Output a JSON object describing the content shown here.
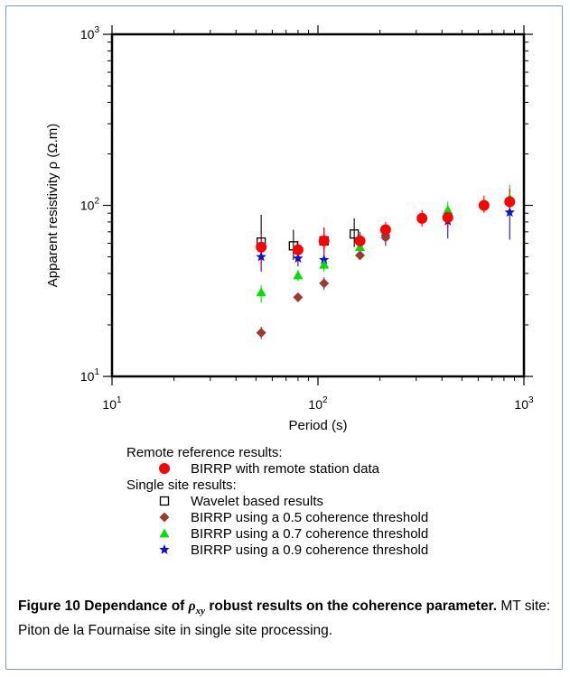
{
  "chart_data": {
    "type": "scatter",
    "xlabel": "Period (s)",
    "ylabel": "Apparent resistivity ρ (Ω.m)",
    "xscale": "log",
    "yscale": "log",
    "xlim": [
      10,
      1000
    ],
    "ylim": [
      10,
      1000
    ],
    "x_ticks": [
      {
        "base": "10",
        "exp": "1",
        "value": 10
      },
      {
        "base": "10",
        "exp": "2",
        "value": 100
      },
      {
        "base": "10",
        "exp": "3",
        "value": 1000
      }
    ],
    "y_ticks": [
      {
        "base": "10",
        "exp": "1",
        "value": 10
      },
      {
        "base": "10",
        "exp": "2",
        "value": 100
      },
      {
        "base": "10",
        "exp": "3",
        "value": 1000
      }
    ],
    "grid": false,
    "legend_position": "below",
    "series": [
      {
        "name": "BIRRP with remote station data",
        "group": "Remote reference results:",
        "marker": "circle",
        "color": "#ff0000",
        "points": [
          {
            "x": 53,
            "y": 57,
            "lo": 44,
            "hi": 68
          },
          {
            "x": 80,
            "y": 55,
            "lo": 47,
            "hi": 62
          },
          {
            "x": 107,
            "y": 62,
            "lo": 50,
            "hi": 74
          },
          {
            "x": 160,
            "y": 62,
            "lo": 55,
            "hi": 70
          },
          {
            "x": 213,
            "y": 72,
            "lo": 64,
            "hi": 80
          },
          {
            "x": 320,
            "y": 84,
            "lo": 75,
            "hi": 94
          },
          {
            "x": 427,
            "y": 85,
            "lo": 74,
            "hi": 95
          },
          {
            "x": 640,
            "y": 100,
            "lo": 90,
            "hi": 114
          },
          {
            "x": 853,
            "y": 105,
            "lo": 92,
            "hi": 125
          }
        ]
      },
      {
        "name": "Wavelet based results",
        "group": "Single site results:",
        "marker": "square",
        "color": "#000000",
        "points": [
          {
            "x": 53,
            "y": 61,
            "lo": 47,
            "hi": 88
          },
          {
            "x": 76,
            "y": 58,
            "lo": 48,
            "hi": 72
          },
          {
            "x": 107,
            "y": 62,
            "lo": 53,
            "hi": 74
          },
          {
            "x": 150,
            "y": 68,
            "lo": 57,
            "hi": 84
          }
        ]
      },
      {
        "name": "BIRRP using a 0.5 coherence threshold",
        "group": "Single site results:",
        "marker": "diamond",
        "color": "#9b3b30",
        "points": [
          {
            "x": 53,
            "y": 18,
            "lo": 16.5,
            "hi": 19.5
          },
          {
            "x": 80,
            "y": 29,
            "lo": 28,
            "hi": 30
          },
          {
            "x": 107,
            "y": 35,
            "lo": 32,
            "hi": 38
          },
          {
            "x": 160,
            "y": 51,
            "lo": 49,
            "hi": 53
          },
          {
            "x": 213,
            "y": 65,
            "lo": 61,
            "hi": 69
          }
        ]
      },
      {
        "name": "BIRRP using a 0.7 coherence threshold",
        "group": "Single site results:",
        "marker": "triangle",
        "color": "#00e000",
        "points": [
          {
            "x": 53,
            "y": 31,
            "lo": 27,
            "hi": 34
          },
          {
            "x": 80,
            "y": 39,
            "lo": 36,
            "hi": 42
          },
          {
            "x": 107,
            "y": 45,
            "lo": 41,
            "hi": 50
          },
          {
            "x": 160,
            "y": 57,
            "lo": 52,
            "hi": 62
          },
          {
            "x": 427,
            "y": 94,
            "lo": 84,
            "hi": 105
          },
          {
            "x": 853,
            "y": 110,
            "lo": 95,
            "hi": 132
          }
        ]
      },
      {
        "name": "BIRRP using a 0.9 coherence threshold",
        "group": "Single site results:",
        "marker": "star",
        "color": "#1010d0",
        "points": [
          {
            "x": 53,
            "y": 50,
            "lo": 41,
            "hi": 58
          },
          {
            "x": 80,
            "y": 49,
            "lo": 44,
            "hi": 54
          },
          {
            "x": 107,
            "y": 48,
            "lo": 43,
            "hi": 53
          },
          {
            "x": 160,
            "y": 59,
            "lo": 53,
            "hi": 65
          },
          {
            "x": 213,
            "y": 66,
            "lo": 58,
            "hi": 73
          },
          {
            "x": 427,
            "y": 81,
            "lo": 64,
            "hi": 94
          },
          {
            "x": 853,
            "y": 91,
            "lo": 63,
            "hi": 110
          }
        ]
      }
    ]
  },
  "legend": {
    "groups": [
      {
        "title": "Remote reference results:",
        "entries": [
          {
            "label": "BIRRP with remote station data",
            "marker": "circle",
            "color": "#ff0000"
          }
        ]
      },
      {
        "title": "Single site results:",
        "entries": [
          {
            "label": "Wavelet based results",
            "marker": "square",
            "color": "#000000"
          },
          {
            "label": "BIRRP using a 0.5 coherence threshold",
            "marker": "diamond",
            "color": "#9b3b30"
          },
          {
            "label": "BIRRP using a 0.7 coherence threshold",
            "marker": "triangle",
            "color": "#00e000"
          },
          {
            "label": "BIRRP using a 0.9 coherence threshold",
            "marker": "star",
            "color": "#1010d0"
          }
        ]
      }
    ]
  },
  "caption": {
    "label": "Figure 10",
    "bold_pre": "Dependance of ",
    "math_symbol": "ρ",
    "math_subscript": "xy",
    "bold_post": " robust results on the coherence parameter.",
    "body": " MT site: Piton de la Fournaise site in single site processing."
  },
  "frame_color": "#7a98c4"
}
